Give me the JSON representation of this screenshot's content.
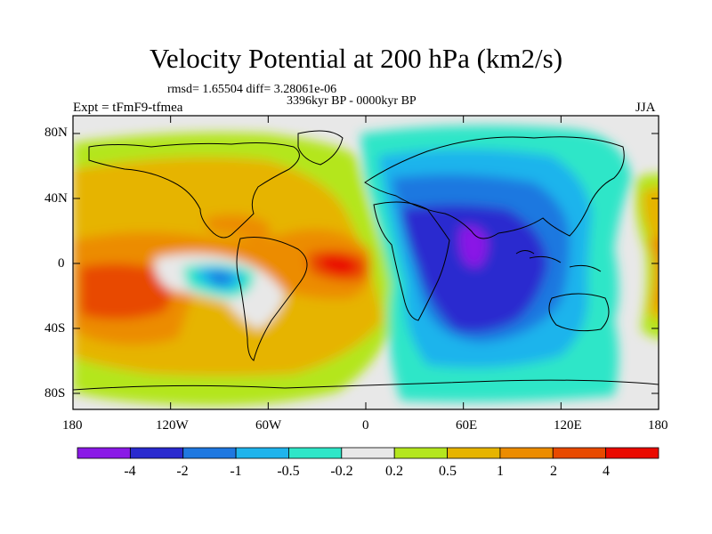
{
  "title": "Velocity Potential at 200 hPa (km2/s)",
  "stats": "rmsd= 1.65504 diff= 3.28061e-06",
  "experiment": "Expt = tFmF9-tfmea",
  "period": "3396kyr BP - 0000kyr BP",
  "season": "JJA",
  "lat_labels": [
    "80N",
    "40N",
    "0",
    "40S",
    "80S"
  ],
  "lon_labels": [
    "180",
    "120W",
    "60W",
    "0",
    "60E",
    "120E",
    "180"
  ],
  "colorbar": {
    "labels": [
      "-4",
      "-2",
      "-1",
      "-0.5",
      "-0.2",
      "0.2",
      "0.5",
      "1",
      "2",
      "4"
    ],
    "colors": [
      "#8a19e6",
      "#2a2acf",
      "#1f78e0",
      "#1fb4ec",
      "#2fe6c8",
      "#e8e8e8",
      "#b4e61e",
      "#e6b400",
      "#ec8c00",
      "#e84a00",
      "#ea0a00"
    ]
  }
}
